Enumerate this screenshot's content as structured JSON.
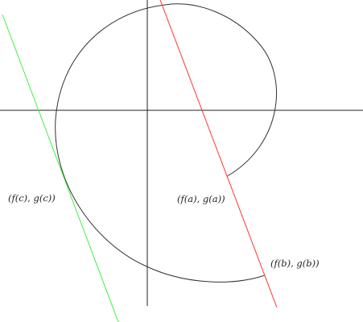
{
  "colors": {
    "background": "#ffffff",
    "axes": "#222222",
    "curve": "#333333",
    "tangent_red": "#ff3333",
    "tangent_green": "#44ee44",
    "label_text": "#222222"
  },
  "labels": {
    "point_a": "(f(a), g(a))",
    "point_b": "(f(b), g(b))",
    "point_c": "(f(c), g(c))"
  }
}
